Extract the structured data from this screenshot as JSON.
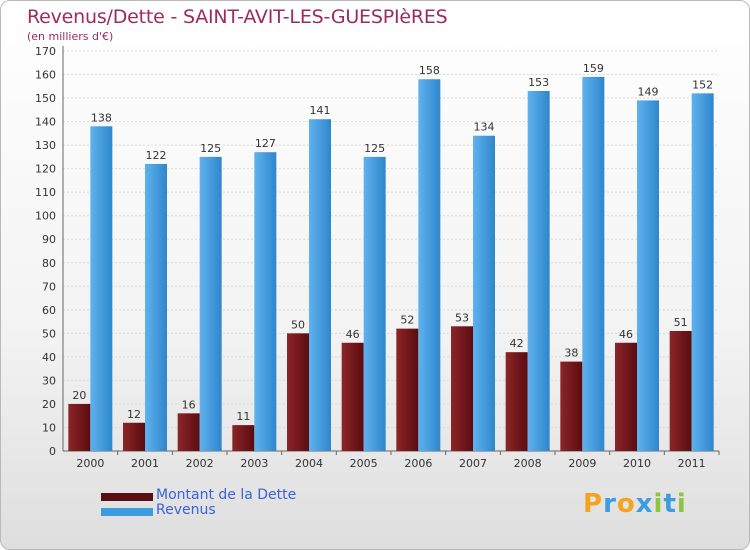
{
  "chart_data": {
    "type": "bar",
    "title": "Revenus/Dette - SAINT-AVIT-LES-GUESPIèRES",
    "subtitle": "(en milliers d'€)",
    "categories": [
      "2000",
      "2001",
      "2002",
      "2003",
      "2004",
      "2005",
      "2006",
      "2007",
      "2008",
      "2009",
      "2010",
      "2011"
    ],
    "series": [
      {
        "name": "Montant de la Dette",
        "color": "#7a1a1d",
        "values": [
          20,
          12,
          16,
          11,
          50,
          46,
          52,
          53,
          42,
          38,
          46,
          51
        ]
      },
      {
        "name": "Revenus",
        "color": "#3d9be0",
        "values": [
          138,
          122,
          125,
          127,
          141,
          125,
          158,
          134,
          153,
          159,
          149,
          152
        ]
      }
    ],
    "ylim": [
      0,
      170
    ],
    "yticks": [
      0,
      10,
      20,
      30,
      40,
      50,
      60,
      70,
      80,
      90,
      100,
      110,
      120,
      130,
      140,
      150,
      160,
      170
    ],
    "grid": true,
    "legend": "bottom-left"
  },
  "branding": {
    "logo_text": "Proxiti",
    "logo_letters": [
      {
        "ch": "P",
        "color": "#f5a21d"
      },
      {
        "ch": "r",
        "color": "#3d9be0"
      },
      {
        "ch": "o",
        "color": "#f5a21d"
      },
      {
        "ch": "x",
        "color": "#3d9be0"
      },
      {
        "ch": "i",
        "color": "#8cc63f"
      },
      {
        "ch": "t",
        "color": "#3d9be0"
      },
      {
        "ch": "i",
        "color": "#8cc63f"
      }
    ]
  }
}
